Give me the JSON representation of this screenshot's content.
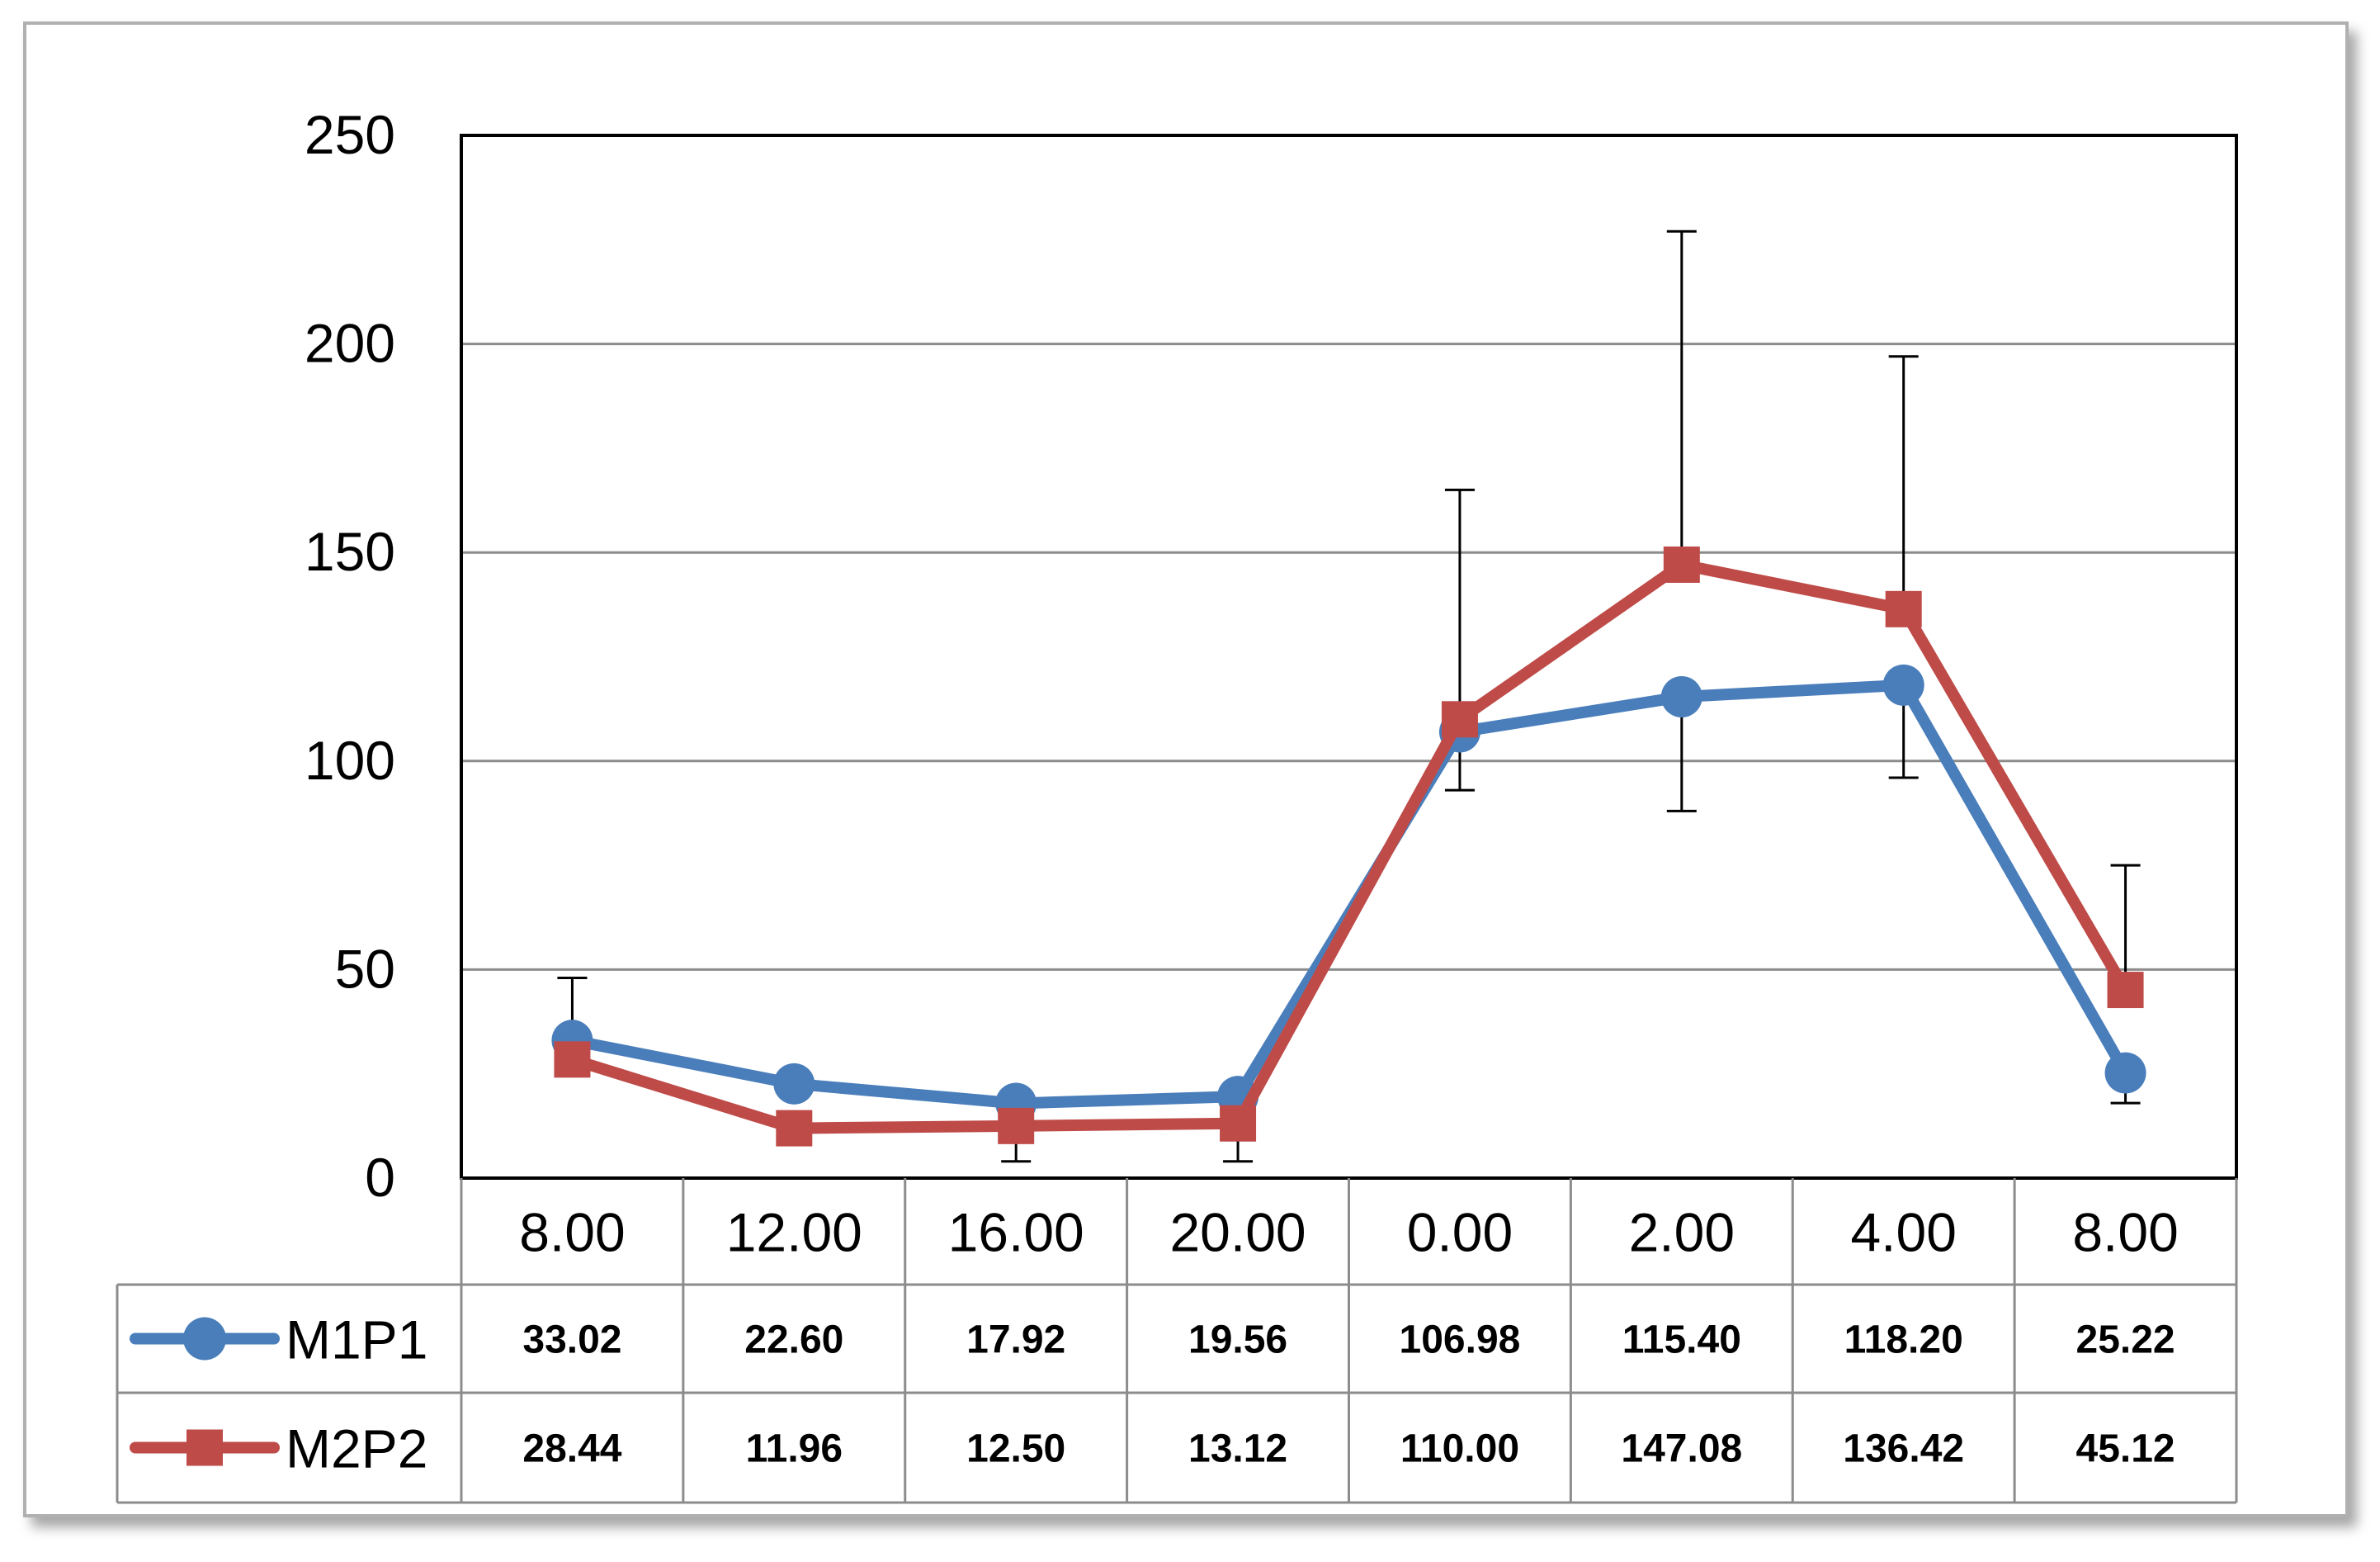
{
  "chart_data": {
    "type": "line",
    "categories": [
      "8.00",
      "12.00",
      "16.00",
      "20.00",
      "0.00",
      "2.00",
      "4.00",
      "8.00"
    ],
    "ylim": [
      0,
      250
    ],
    "yticks": [
      0,
      50,
      100,
      150,
      200,
      250
    ],
    "grid": true,
    "legend_placement": "data-table-left",
    "series": [
      {
        "name": "M1P1",
        "color": "#4a7ebb",
        "marker": "circle",
        "values": [
          33.02,
          22.6,
          17.92,
          19.56,
          106.98,
          115.4,
          118.2,
          25.22
        ],
        "value_labels": [
          "33.02",
          "22.60",
          "17.92",
          "19.56",
          "106.98",
          "115.40",
          "118.20",
          "25.22"
        ],
        "error_high": [
          null,
          null,
          null,
          null,
          165,
          null,
          null,
          null
        ],
        "error_low": [
          null,
          null,
          null,
          null,
          93,
          88,
          96,
          18
        ]
      },
      {
        "name": "M2P2",
        "color": "#be4b48",
        "marker": "square",
        "values": [
          28.44,
          11.96,
          12.5,
          13.12,
          110.0,
          147.08,
          136.42,
          45.12
        ],
        "value_labels": [
          "28.44",
          "11.96",
          "12.50",
          "13.12",
          "110.00",
          "147.08",
          "136.42",
          "45.12"
        ],
        "error_high": [
          48,
          null,
          null,
          null,
          null,
          227,
          197,
          75
        ],
        "error_low": [
          null,
          null,
          4,
          4,
          null,
          null,
          null,
          null
        ]
      }
    ]
  }
}
